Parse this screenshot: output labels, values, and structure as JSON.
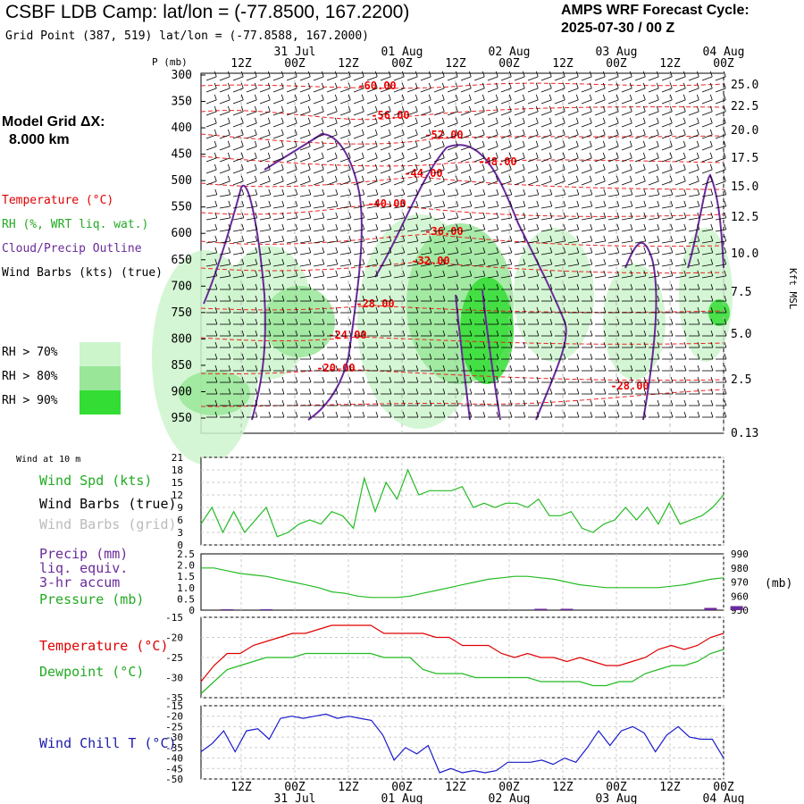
{
  "header": {
    "title": "CSBF LDB Camp:  lat/lon = (-77.8500, 167.2200)",
    "subtitle": "Grid Point (387, 519) lat/lon = (-77.8588, 167.2000)",
    "cycle_line1": "AMPS WRF Forecast Cycle:",
    "cycle_line2": "2025-07-30 / 00  Z"
  },
  "model_grid": {
    "line1": "Model Grid ΔX:",
    "line2": "8.000 km"
  },
  "legend": {
    "temperature": "Temperature (°C)",
    "rh": "RH (%, WRT liq. wat.)",
    "cloud": "Cloud/Precip Outline",
    "barbs": "Wind Barbs (kts) (true)",
    "rh70": "RH > 70%",
    "rh80": "RH > 80%",
    "rh90": "RH > 90%",
    "colors": {
      "rh70": "#ccf5cc",
      "rh80": "#99e699",
      "rh90": "#33dd33",
      "temp": "#ff0000",
      "cloud": "#6a2a9a",
      "rhline": "#00aa00"
    }
  },
  "time_axis": {
    "top_hours": [
      "12Z",
      "00Z",
      "12Z",
      "00Z",
      "12Z",
      "00Z",
      "12Z",
      "00Z",
      "12Z",
      "00Z"
    ],
    "dates": [
      "31 Jul",
      "01 Aug",
      "02 Aug",
      "03 Aug",
      "04 Aug"
    ]
  },
  "panel_labels": {
    "wind10m": "Wind at 10 m",
    "wind_spd": "Wind Spd (kts)",
    "wind_barbs_true": "Wind Barbs (true)",
    "wind_barbs_grid": "Wind Barbs (grid)",
    "precip1": "Precip (mm)",
    "precip2": "liq. equiv.",
    "precip3": "3-hr accum",
    "pressure": "Pressure (mb)",
    "pressure_unit": "(mb)",
    "temperature": "Temperature (°C)",
    "dewpoint": "Dewpoint (°C)",
    "windchill": "Wind Chill T (°C)",
    "p_unit": "P (mb)",
    "kft": "Kft MSL"
  },
  "chart_data": [
    {
      "type": "heatmap",
      "title": "CSBF LDB Camp:  lat/lon = (-77.8500, 167.2200)",
      "ylabel": "P (mb)",
      "y2label": "Kft MSL",
      "yticks": [
        300,
        350,
        400,
        450,
        500,
        550,
        600,
        650,
        700,
        750,
        800,
        850,
        900,
        950
      ],
      "y2ticks": [
        "25.0",
        "22.5",
        "20.0",
        "17.5",
        "15.0",
        "12.5",
        "10.0",
        "7.5",
        "5.0",
        "2.5",
        "0.13"
      ],
      "temperature_labels": [
        "-60.00",
        "-56.00",
        "-52.00",
        "-48.00",
        "-44.00",
        "-40.00",
        "-36.00",
        "-32.00",
        "-28.00",
        "-24.00",
        "-20.00",
        "-28.00"
      ]
    },
    {
      "type": "line",
      "series": [
        {
          "name": "Wind Spd (kts)",
          "values": [
            5,
            9,
            3,
            8,
            3,
            6,
            9,
            2,
            3,
            5,
            6,
            5,
            8,
            7,
            4,
            16,
            8,
            15,
            11,
            18,
            12,
            13,
            13,
            13,
            14,
            9,
            10,
            9,
            10,
            10,
            9,
            11,
            7,
            7,
            8,
            4,
            3,
            5,
            6,
            9,
            6,
            9,
            5,
            10,
            5,
            6,
            7,
            9,
            12
          ]
        }
      ],
      "ylim": [
        0,
        21
      ],
      "yticks": [
        0,
        3,
        6,
        9,
        12,
        15,
        18,
        21
      ]
    },
    {
      "type": "line",
      "series": [
        {
          "name": "Pressure (mb)",
          "values": [
            980,
            980,
            978,
            976,
            975,
            974,
            972,
            970,
            968,
            966,
            963,
            962,
            960,
            959,
            959,
            959,
            960,
            962,
            964,
            966,
            968,
            970,
            972,
            973,
            974,
            974,
            973,
            972,
            970,
            968,
            967,
            966,
            966,
            966,
            966,
            966,
            967,
            968,
            970,
            972,
            973
          ]
        }
      ],
      "y2lim": [
        950,
        990
      ],
      "yticks": [
        "0",
        "0.5",
        "1.0",
        "1.5",
        "2.0",
        "2.5"
      ],
      "y2ticks": [
        "950",
        "960",
        "970",
        "980",
        "990"
      ],
      "precip": [
        {
          "x": 2,
          "v": 0.04
        },
        {
          "x": 5,
          "v": 0.04
        },
        {
          "x": 26,
          "v": 0.06
        },
        {
          "x": 28,
          "v": 0.06
        },
        {
          "x": 39,
          "v": 0.1
        },
        {
          "x": 41,
          "v": 0.18
        }
      ]
    },
    {
      "type": "line",
      "series": [
        {
          "name": "Temperature (°C)",
          "values": [
            -31,
            -27,
            -24,
            -24,
            -22,
            -21,
            -20,
            -19,
            -19,
            -18,
            -17,
            -17,
            -17,
            -17,
            -19,
            -19,
            -19,
            -19,
            -20,
            -20,
            -22,
            -22,
            -22,
            -24,
            -25,
            -24,
            -25,
            -25,
            -26,
            -25,
            -26,
            -27,
            -27,
            -26,
            -25,
            -23,
            -22,
            -23,
            -22,
            -20,
            -19
          ]
        },
        {
          "name": "Dewpoint (°C)",
          "values": [
            -34,
            -31,
            -28,
            -27,
            -26,
            -25,
            -25,
            -25,
            -24,
            -24,
            -24,
            -24,
            -24,
            -24,
            -25,
            -25,
            -25,
            -28,
            -29,
            -29,
            -29,
            -30,
            -30,
            -30,
            -30,
            -30,
            -31,
            -31,
            -31,
            -31,
            -32,
            -32,
            -31,
            -31,
            -29,
            -28,
            -27,
            -27,
            -26,
            -24,
            -23
          ]
        }
      ],
      "ylim": [
        -35,
        -15
      ],
      "yticks": [
        -35,
        -30,
        -25,
        -20,
        -15
      ]
    },
    {
      "type": "line",
      "series": [
        {
          "name": "Wind Chill T (°C)",
          "values": [
            -37,
            -33,
            -27,
            -37,
            -27,
            -26,
            -31,
            -21,
            -20,
            -21,
            -20,
            -19,
            -21,
            -20,
            -21,
            -22,
            -29,
            -41,
            -35,
            -38,
            -34,
            -47,
            -45,
            -47,
            -46,
            -47,
            -46,
            -42,
            -42,
            -42,
            -41,
            -43,
            -40,
            -42,
            -35,
            -27,
            -34,
            -27,
            -25,
            -28,
            -37,
            -29,
            -25,
            -30,
            -31,
            -31,
            -40
          ]
        }
      ],
      "ylim": [
        -50,
        -15
      ],
      "yticks": [
        -50,
        -45,
        -40,
        -35,
        -30,
        -25,
        -20,
        -15
      ]
    }
  ]
}
